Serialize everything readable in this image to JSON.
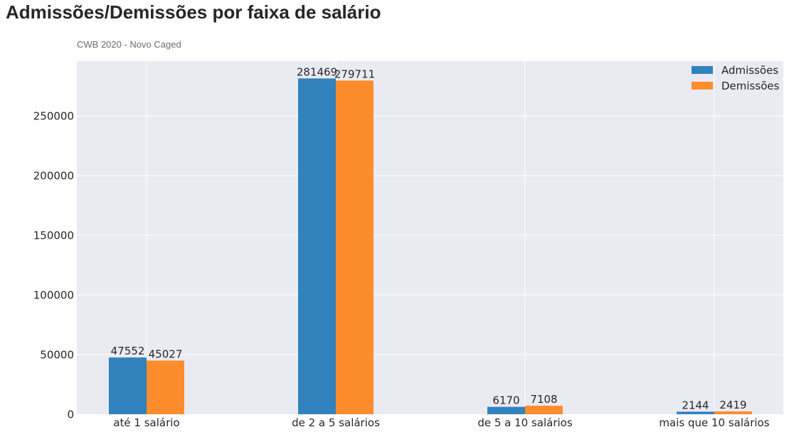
{
  "chart_data": {
    "type": "bar",
    "title": "Admissões/Demissões por faixa de salário",
    "subtitle": "CWB 2020 - Novo Caged",
    "xlabel": "",
    "ylabel": "",
    "categories": [
      "até 1 salário",
      "de 2 a 5 salários",
      "de 5 a 10 salários",
      "mais que 10 salários"
    ],
    "series": [
      {
        "name": "Admissões",
        "values": [
          47552,
          281469,
          6170,
          2144
        ],
        "color": "#3182bd"
      },
      {
        "name": "Demissões",
        "values": [
          45027,
          279711,
          7108,
          2419
        ],
        "color": "#fd8d2c"
      }
    ],
    "ylim": [
      0,
      296000
    ],
    "yticks": [
      0,
      50000,
      100000,
      150000,
      200000,
      250000
    ],
    "grid": true,
    "background": "#eaeaf2",
    "legend": "top-right"
  }
}
